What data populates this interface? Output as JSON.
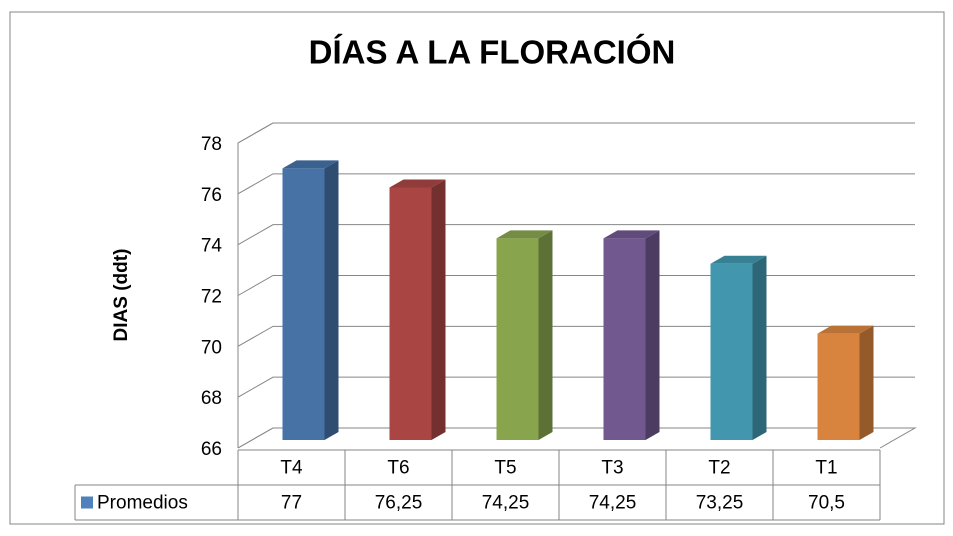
{
  "chart_data": {
    "type": "bar3d",
    "title": "DÍAS A LA FLORACIÓN",
    "y_label": "DIAS    (ddt)",
    "categories": [
      "T4",
      "T6",
      "T5",
      "T3",
      "T2",
      "T1"
    ],
    "series": [
      {
        "name": "Promedios",
        "color": "#4f81bd",
        "values": [
          77,
          76.25,
          74.25,
          74.25,
          73.25,
          70.5
        ],
        "value_labels": [
          "77",
          "76,25",
          "74,25",
          "74,25",
          "73,25",
          "70,5"
        ]
      }
    ],
    "bar_colors": [
      "#4f81bd",
      "#c0504d",
      "#9bbb59",
      "#8064a2",
      "#4bacc6",
      "#f79646"
    ],
    "ylim": [
      66,
      78
    ],
    "yticks": [
      66,
      68,
      70,
      72,
      74,
      76,
      78
    ],
    "grid": true
  }
}
